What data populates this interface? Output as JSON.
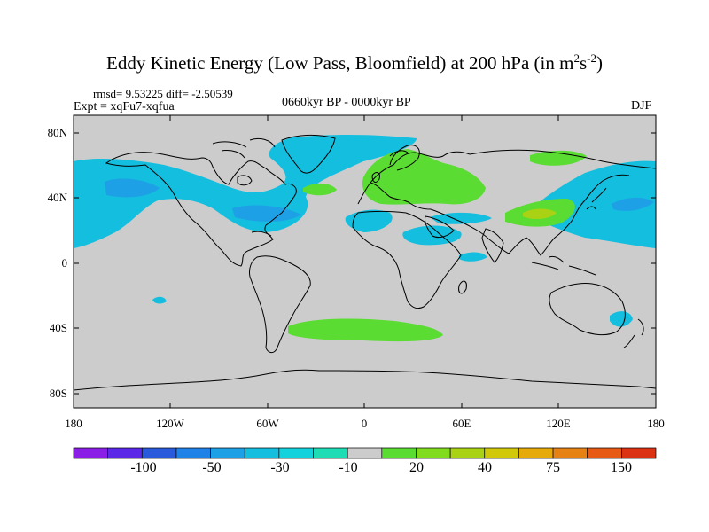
{
  "title": {
    "main": "Eddy Kinetic Energy (Low Pass, Bloomfield) at 200 hPa (in m",
    "sup1": "2",
    "mid": "s",
    "sup2": "-2",
    "close": ")"
  },
  "stats": "rmsd= 9.53225 diff= -2.50539",
  "experiment": "Expt = xqFu7-xqfua",
  "period": "0660kyr BP - 0000kyr BP",
  "season": "DJF",
  "axes": {
    "y_ticks": [
      "80N",
      "40N",
      "0",
      "40S",
      "80S"
    ],
    "x_ticks": [
      "180",
      "120W",
      "60W",
      "0",
      "60E",
      "120E",
      "180"
    ]
  },
  "colorbar": {
    "labels": [
      "-100",
      "-50",
      "-30",
      "-10",
      "20",
      "40",
      "75",
      "150"
    ],
    "colors": [
      "#8a1ee6",
      "#5a28e6",
      "#2a5adc",
      "#1e82e6",
      "#1ea0e6",
      "#14bede",
      "#14d2dc",
      "#1edcb4",
      "#cccccc",
      "#5adc32",
      "#82dc1e",
      "#aad214",
      "#d2c80a",
      "#e6aa0a",
      "#e68214",
      "#e65a14",
      "#dc3214"
    ]
  },
  "colors": {
    "ocean": "#cccccc",
    "neg_light": "#14bede",
    "neg_mid": "#1ea0e6",
    "pos_light": "#5adc32",
    "pos_mid": "#aad214"
  }
}
